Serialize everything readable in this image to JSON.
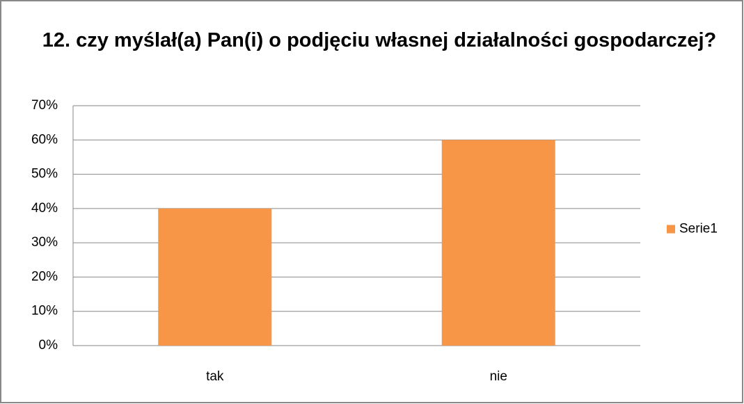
{
  "chart_data": {
    "type": "bar",
    "title": "12. czy myślał(a) Pan(i) o podjęciu własnej działalności gospodarczej?",
    "categories": [
      "tak",
      "nie"
    ],
    "series": [
      {
        "name": "Serie1",
        "color": "#f79646",
        "values": [
          40,
          60
        ]
      }
    ],
    "ylim": [
      0,
      70
    ],
    "yticks": [
      {
        "value": 0,
        "label": "0%"
      },
      {
        "value": 10,
        "label": "10%"
      },
      {
        "value": 20,
        "label": "20%"
      },
      {
        "value": 30,
        "label": "30%"
      },
      {
        "value": 40,
        "label": "40%"
      },
      {
        "value": 50,
        "label": "50%"
      },
      {
        "value": 60,
        "label": "60%"
      },
      {
        "value": 70,
        "label": "70%"
      }
    ],
    "grid": true,
    "legend": "right"
  }
}
